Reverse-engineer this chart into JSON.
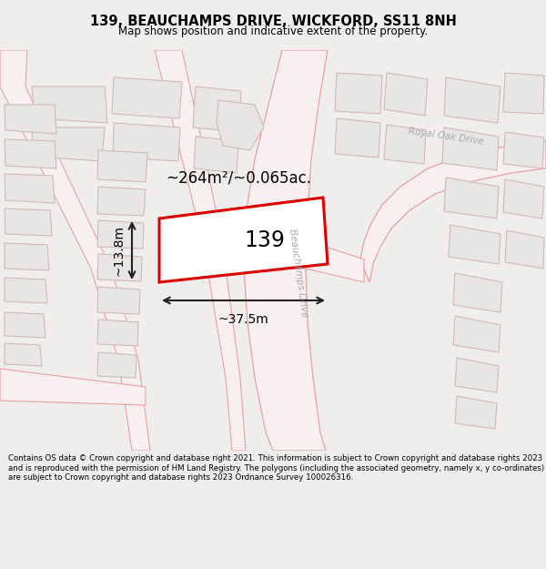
{
  "title": "139, BEAUCHAMPS DRIVE, WICKFORD, SS11 8NH",
  "subtitle": "Map shows position and indicative extent of the property.",
  "footer": "Contains OS data © Crown copyright and database right 2021. This information is subject to Crown copyright and database rights 2023 and is reproduced with the permission of HM Land Registry. The polygons (including the associated geometry, namely x, y co-ordinates) are subject to Crown copyright and database rights 2023 Ordnance Survey 100026316.",
  "bg_color": "#f0eeec",
  "map_bg": "#ffffff",
  "plot_fill": "#ffffff",
  "plot_stroke": "#dd0000",
  "road_outline": "#e8a0a0",
  "road_fill": "#f8f0f0",
  "building_fill": "#e8e6e4",
  "building_outline": "#d0b8b8",
  "dim_color": "#222222",
  "area_label": "~264m²/~0.065ac.",
  "width_label": "~37.5m",
  "height_label": "~13.8m",
  "plot_number": "139",
  "road_label_1": "Beauchamps Drive",
  "road_label_2": "Royal Oak Drive",
  "label_color": "#aaaaaa",
  "fig_width": 6.0,
  "fig_height": 6.25
}
